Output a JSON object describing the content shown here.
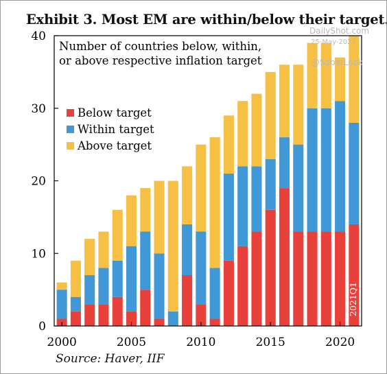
{
  "title": "Exhibit 3. Most EM are within/below their target.",
  "source": "Source: Haver, IIF",
  "watermarks": {
    "site": "DailyShot.com",
    "date": "25-May-2021",
    "handle": "@SoberLook"
  },
  "chart_data": {
    "type": "bar",
    "stacked": true,
    "annotation": [
      "Number of countries below, within,",
      "or above respective inflation target"
    ],
    "end_label": "2021Q1",
    "xlabel": "",
    "ylabel": "",
    "x": [
      2000,
      2001,
      2002,
      2003,
      2004,
      2005,
      2006,
      2007,
      2008,
      2009,
      2010,
      2011,
      2012,
      2013,
      2014,
      2015,
      2016,
      2017,
      2018,
      2019,
      2020,
      2021
    ],
    "x_ticks": [
      2000,
      2005,
      2010,
      2015,
      2020
    ],
    "xlim": [
      1999.45,
      2021.55
    ],
    "ylim": [
      0,
      40
    ],
    "y_ticks": [
      0,
      10,
      20,
      30,
      40
    ],
    "grid": false,
    "legend_position": "left",
    "series": [
      {
        "name": "Below target",
        "color": "#e8413b",
        "values": [
          1,
          2,
          3,
          3,
          4,
          2,
          5,
          1,
          0,
          7,
          3,
          1,
          9,
          11,
          13,
          16,
          19,
          13,
          13,
          13,
          13,
          14
        ]
      },
      {
        "name": "Within target",
        "color": "#4198d7",
        "values": [
          4,
          2,
          4,
          5,
          5,
          9,
          8,
          9,
          2,
          7,
          10,
          7,
          12,
          11,
          9,
          7,
          7,
          12,
          17,
          17,
          18,
          14
        ]
      },
      {
        "name": "Above target",
        "color": "#f5c044",
        "values": [
          1,
          5,
          5,
          5,
          7,
          7,
          6,
          10,
          18,
          8,
          12,
          18,
          8,
          9,
          10,
          12,
          10,
          11,
          9,
          9,
          6,
          12
        ]
      }
    ]
  }
}
